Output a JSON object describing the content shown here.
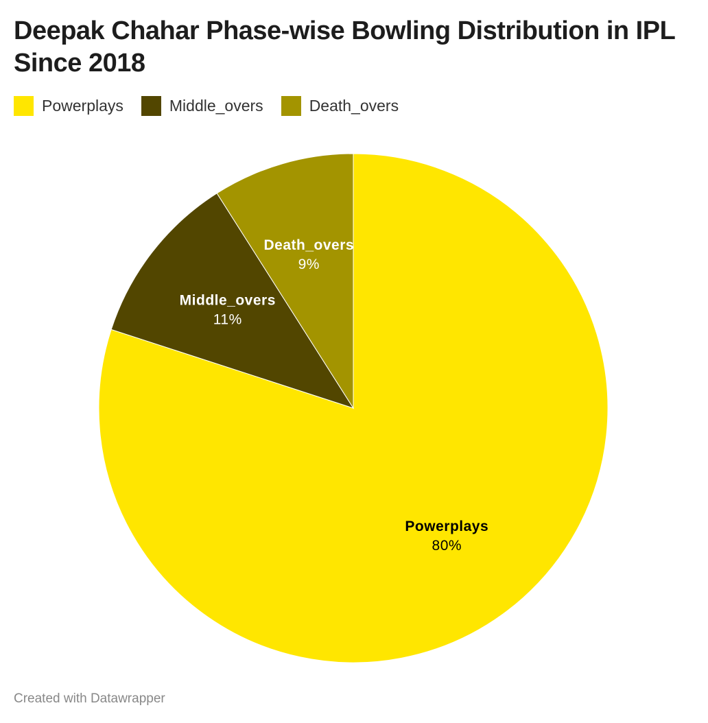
{
  "chart_data": {
    "type": "pie",
    "title": "Deepak Chahar Phase-wise Bowling Distribution in IPL Since 2018",
    "categories": [
      "Powerplays",
      "Middle_overs",
      "Death_overs"
    ],
    "values": [
      80,
      11,
      9
    ],
    "value_labels": [
      "80%",
      "11%",
      "9%"
    ],
    "colors": [
      "#ffe600",
      "#524600",
      "#a39400"
    ],
    "label_colors": [
      "#000000",
      "#ffffff",
      "#ffffff"
    ],
    "legend": "top-left",
    "footer": "Created with Datawrapper"
  }
}
